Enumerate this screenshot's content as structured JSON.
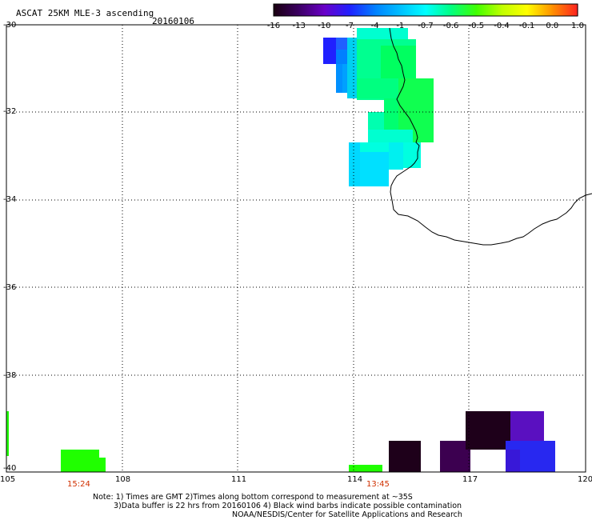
{
  "header": {
    "title": "ASCAT 25KM MLE-3 ascending",
    "date": "20160106"
  },
  "colorbar": {
    "labels": [
      "-16",
      "-13",
      "-10",
      "-7",
      "-4",
      "-1",
      "-0.7",
      "-0.6",
      "-0.5",
      "-0.4",
      "-0.1",
      "0.0",
      "1.0"
    ],
    "colors": [
      "#1a0010",
      "#3c0064",
      "#6a00c8",
      "#2020ff",
      "#0080ff",
      "#00c0ff",
      "#00ffff",
      "#00ff80",
      "#40ff00",
      "#c0ff00",
      "#ffff00",
      "#ff9000",
      "#ff2020"
    ]
  },
  "axes": {
    "lat_labels": [
      "-30",
      "-32",
      "-34",
      "-36",
      "-38",
      "-40"
    ],
    "lon_labels": [
      "105",
      "108",
      "111",
      "114",
      "117",
      "120"
    ]
  },
  "pass_times": [
    "15:24",
    "13:45"
  ],
  "notes": {
    "line1": "Note: 1) Times are GMT 2)Times along bottom correspond to measurement at ~35S",
    "line2": "3)Data buffer is 22 hrs from 20160106 4) Black wind barbs indicate possible contamination",
    "line3": "NOAA/NESDIS/Center for Satellite Applications and Research"
  },
  "style": {
    "grid_color": "#000000",
    "time_color": "#d03000",
    "coast_color": "#000000"
  }
}
